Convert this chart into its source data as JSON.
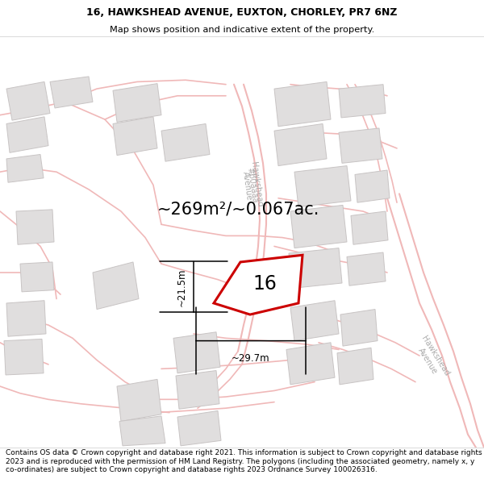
{
  "title_line1": "16, HAWKSHEAD AVENUE, EUXTON, CHORLEY, PR7 6NZ",
  "title_line2": "Map shows position and indicative extent of the property.",
  "footer_text": "Contains OS data © Crown copyright and database right 2021. This information is subject to Crown copyright and database rights 2023 and is reproduced with the permission of HM Land Registry. The polygons (including the associated geometry, namely x, y co-ordinates) are subject to Crown copyright and database rights 2023 Ordnance Survey 100026316.",
  "area_label": "~269m²/~0.067ac.",
  "number_label": "16",
  "dim_width": "~29.7m",
  "dim_height": "~21.5m",
  "map_bg": "#f7f5f5",
  "road_color": "#f0b8b8",
  "building_fill": "#e0dede",
  "building_edge": "#c8c4c4",
  "plot_color": "#cc0000",
  "street_color": "#b0aaaa",
  "title_fontsize": 9.0,
  "subtitle_fontsize": 8.2,
  "footer_fontsize": 6.5,
  "area_fontsize": 15,
  "number_fontsize": 17,
  "dim_fontsize": 8.5,
  "street_fontsize": 7.0
}
